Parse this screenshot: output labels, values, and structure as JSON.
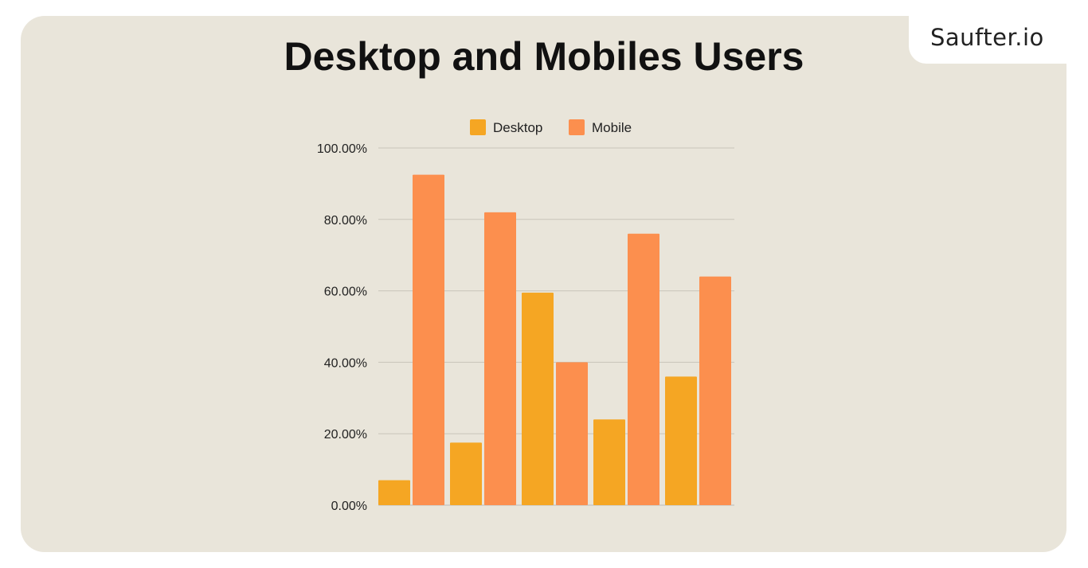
{
  "brand": "Saufter.io",
  "chart_data": {
    "type": "bar",
    "title": "Desktop and Mobiles Users",
    "xlabel": "",
    "ylabel": "",
    "categories": [
      "",
      "",
      "",
      "",
      ""
    ],
    "series": [
      {
        "name": "Desktop",
        "color": "#f5a623",
        "values": [
          7,
          17.5,
          59.5,
          24,
          36
        ]
      },
      {
        "name": "Mobile",
        "color": "#fc8f4e",
        "values": [
          92.5,
          82,
          40,
          76,
          64
        ]
      }
    ],
    "ylim": [
      0,
      100
    ],
    "yticks": [
      "0.00%",
      "20.00%",
      "40.00%",
      "60.00%",
      "80.00%",
      "100.00%"
    ],
    "grid": true,
    "legend": "top"
  },
  "colors": {
    "background": "#e9e5da"
  }
}
